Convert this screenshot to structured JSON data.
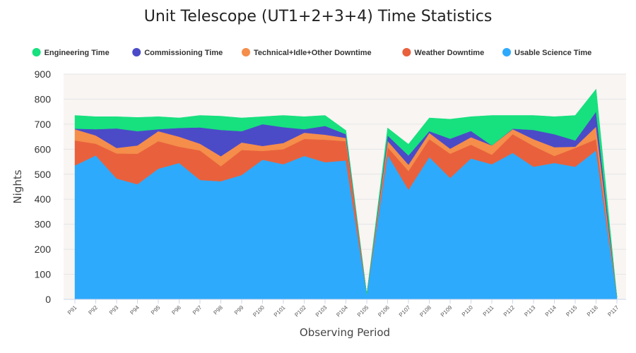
{
  "chart_data": {
    "type": "area",
    "stacked": true,
    "title": "Unit Telescope (UT1+2+3+4) Time Statistics",
    "xlabel": "Observing Period",
    "ylabel": "Nights",
    "ylim": [
      0,
      900
    ],
    "yticks": [
      0,
      100,
      200,
      300,
      400,
      500,
      600,
      700,
      800,
      900
    ],
    "legend_position": "top",
    "plot_background": "#f8f5f3",
    "categories": [
      "P91",
      "P92",
      "P93",
      "P94",
      "P95",
      "P96",
      "P97",
      "P98",
      "P99",
      "P100",
      "P101",
      "P102",
      "P103",
      "P104",
      "P105",
      "P106",
      "P107",
      "P108",
      "P109",
      "P110",
      "P111",
      "P112",
      "P113",
      "P114",
      "P115",
      "P116",
      "P117"
    ],
    "series": [
      {
        "name": "Usable Science Time",
        "color": "#2eaafc",
        "values": [
          535,
          575,
          483,
          460,
          522,
          545,
          477,
          472,
          497,
          558,
          540,
          573,
          548,
          555,
          20,
          578,
          438,
          568,
          485,
          563,
          540,
          585,
          530,
          545,
          530,
          595,
          10
        ]
      },
      {
        "name": "Weather Downtime",
        "color": "#e8613c",
        "values": [
          100,
          47,
          100,
          122,
          110,
          65,
          118,
          60,
          100,
          35,
          60,
          68,
          90,
          77,
          0,
          30,
          75,
          72,
          97,
          55,
          38,
          75,
          83,
          28,
          75,
          45,
          0
        ]
      },
      {
        "name": "Technical+Idle+Other Downtime",
        "color": "#f58d4b",
        "values": [
          45,
          33,
          22,
          33,
          40,
          40,
          27,
          40,
          30,
          20,
          25,
          25,
          20,
          13,
          0,
          25,
          25,
          25,
          20,
          30,
          37,
          20,
          27,
          35,
          5,
          50,
          0
        ]
      },
      {
        "name": "Commissioning Time",
        "color": "#4b4bc8",
        "values": [
          2,
          25,
          78,
          57,
          8,
          35,
          65,
          105,
          45,
          87,
          63,
          14,
          35,
          15,
          0,
          22,
          37,
          7,
          40,
          25,
          0,
          2,
          37,
          52,
          25,
          60,
          0
        ]
      },
      {
        "name": "Engineering Time",
        "color": "#17e07e",
        "values": [
          53,
          50,
          47,
          55,
          50,
          40,
          48,
          55,
          53,
          30,
          47,
          50,
          42,
          15,
          0,
          30,
          45,
          53,
          78,
          57,
          120,
          53,
          58,
          70,
          100,
          90,
          0
        ]
      }
    ]
  }
}
